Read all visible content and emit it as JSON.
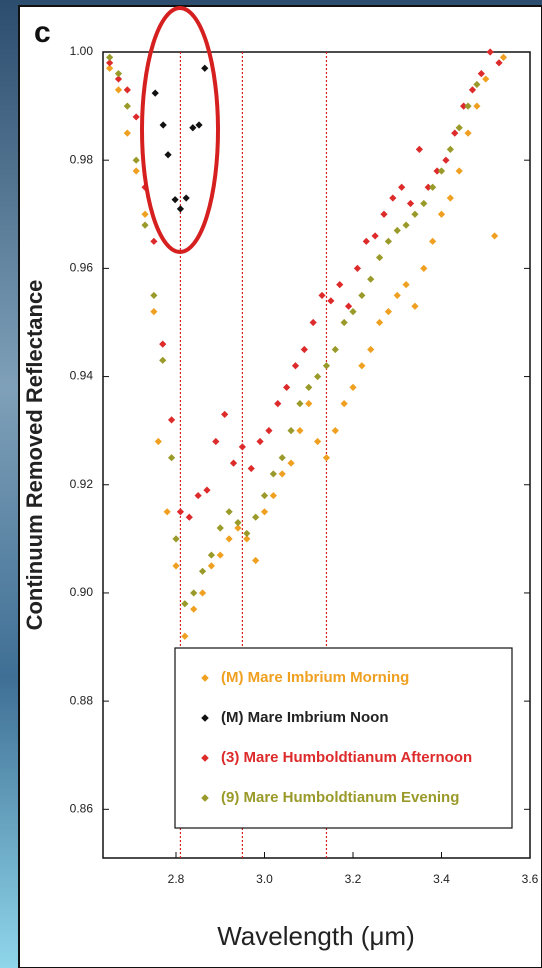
{
  "chart_data": {
    "type": "scatter",
    "panel_label": "c",
    "x_label": "Wavelength (μm)",
    "y_label": "Continuum Removed Reflectance",
    "xlim": [
      2.635,
      3.6
    ],
    "ylim": [
      0.851,
      1.0
    ],
    "xticks": [
      2.8,
      {
        "value": 3,
        "label": "3.0"
      },
      3.2,
      3.4,
      3.6
    ],
    "yticks": [
      {
        "value": 1,
        "label": "1.00"
      },
      0.98,
      0.96,
      0.94,
      0.92,
      {
        "value": 0.9,
        "label": "0.90"
      },
      0.88,
      0.86
    ],
    "grid": false,
    "legend": "lower right",
    "vlines": [
      2.81,
      2.95,
      3.14
    ],
    "vline_color": "#d62020",
    "series": [
      {
        "name": "(M) Mare Imbrium Morning",
        "color": "#f0a020",
        "x": [
          2.65,
          2.67,
          2.69,
          2.71,
          2.73,
          2.75,
          2.76,
          2.78,
          2.8,
          2.82,
          2.84,
          2.86,
          2.88,
          2.9,
          2.92,
          2.94,
          2.96,
          2.98,
          3.0,
          3.02,
          3.04,
          3.06,
          3.08,
          3.1,
          3.12,
          3.14,
          3.16,
          3.18,
          3.2,
          3.22,
          3.24,
          3.26,
          3.28,
          3.3,
          3.32,
          3.34,
          3.36,
          3.38,
          3.4,
          3.42,
          3.44,
          3.46,
          3.48,
          3.5,
          3.52,
          3.54
        ],
        "values": [
          0.997,
          0.993,
          0.985,
          0.978,
          0.97,
          0.952,
          0.928,
          0.915,
          0.905,
          0.892,
          0.897,
          0.9,
          0.905,
          0.907,
          0.91,
          0.912,
          0.91,
          0.906,
          0.915,
          0.918,
          0.922,
          0.924,
          0.93,
          0.935,
          0.928,
          0.925,
          0.93,
          0.935,
          0.938,
          0.942,
          0.945,
          0.95,
          0.952,
          0.955,
          0.957,
          0.953,
          0.96,
          0.965,
          0.97,
          0.973,
          0.978,
          0.985,
          0.99,
          0.995,
          0.966,
          0.999
        ]
      },
      {
        "name": "(M) Mare Imbrium Noon",
        "color": "#111111",
        "x": [
          2.753,
          2.771,
          2.782,
          2.798,
          2.81,
          2.823,
          2.838,
          2.852,
          2.865
        ],
        "values": [
          0.9924,
          0.9865,
          0.981,
          0.9727,
          0.971,
          0.973,
          0.986,
          0.9865,
          0.997
        ]
      },
      {
        "name": "(3) Mare Humboldtianum Afternoon",
        "color": "#dd2a2a",
        "x": [
          2.65,
          2.67,
          2.69,
          2.71,
          2.73,
          2.75,
          2.77,
          2.79,
          2.81,
          2.83,
          2.85,
          2.87,
          2.89,
          2.91,
          2.93,
          2.95,
          2.97,
          2.99,
          3.01,
          3.03,
          3.05,
          3.07,
          3.09,
          3.11,
          3.13,
          3.15,
          3.17,
          3.19,
          3.21,
          3.23,
          3.25,
          3.27,
          3.29,
          3.31,
          3.33,
          3.35,
          3.37,
          3.39,
          3.41,
          3.43,
          3.45,
          3.47,
          3.49,
          3.51,
          3.53
        ],
        "values": [
          0.998,
          0.995,
          0.993,
          0.988,
          0.975,
          0.965,
          0.946,
          0.932,
          0.915,
          0.914,
          0.918,
          0.919,
          0.928,
          0.933,
          0.924,
          0.927,
          0.923,
          0.928,
          0.93,
          0.935,
          0.938,
          0.942,
          0.945,
          0.95,
          0.955,
          0.954,
          0.957,
          0.953,
          0.96,
          0.965,
          0.966,
          0.97,
          0.973,
          0.975,
          0.972,
          0.982,
          0.975,
          0.978,
          0.98,
          0.985,
          0.99,
          0.993,
          0.996,
          1.0,
          0.998
        ]
      },
      {
        "name": "(9) Mare Humboldtianum Evening",
        "color": "#9a9a2a",
        "x": [
          2.65,
          2.67,
          2.69,
          2.71,
          2.73,
          2.75,
          2.77,
          2.79,
          2.8,
          2.82,
          2.84,
          2.86,
          2.88,
          2.9,
          2.92,
          2.94,
          2.96,
          2.98,
          3.0,
          3.02,
          3.04,
          3.06,
          3.08,
          3.1,
          3.12,
          3.14,
          3.16,
          3.18,
          3.2,
          3.22,
          3.24,
          3.26,
          3.28,
          3.3,
          3.32,
          3.34,
          3.36,
          3.38,
          3.4,
          3.42,
          3.44,
          3.46,
          3.48
        ],
        "values": [
          0.999,
          0.996,
          0.99,
          0.98,
          0.968,
          0.955,
          0.943,
          0.925,
          0.91,
          0.898,
          0.9,
          0.904,
          0.907,
          0.912,
          0.915,
          0.913,
          0.911,
          0.914,
          0.918,
          0.922,
          0.925,
          0.93,
          0.935,
          0.938,
          0.94,
          0.942,
          0.945,
          0.95,
          0.952,
          0.955,
          0.958,
          0.962,
          0.965,
          0.967,
          0.968,
          0.97,
          0.972,
          0.975,
          0.978,
          0.982,
          0.986,
          0.99,
          0.994
        ]
      }
    ]
  }
}
